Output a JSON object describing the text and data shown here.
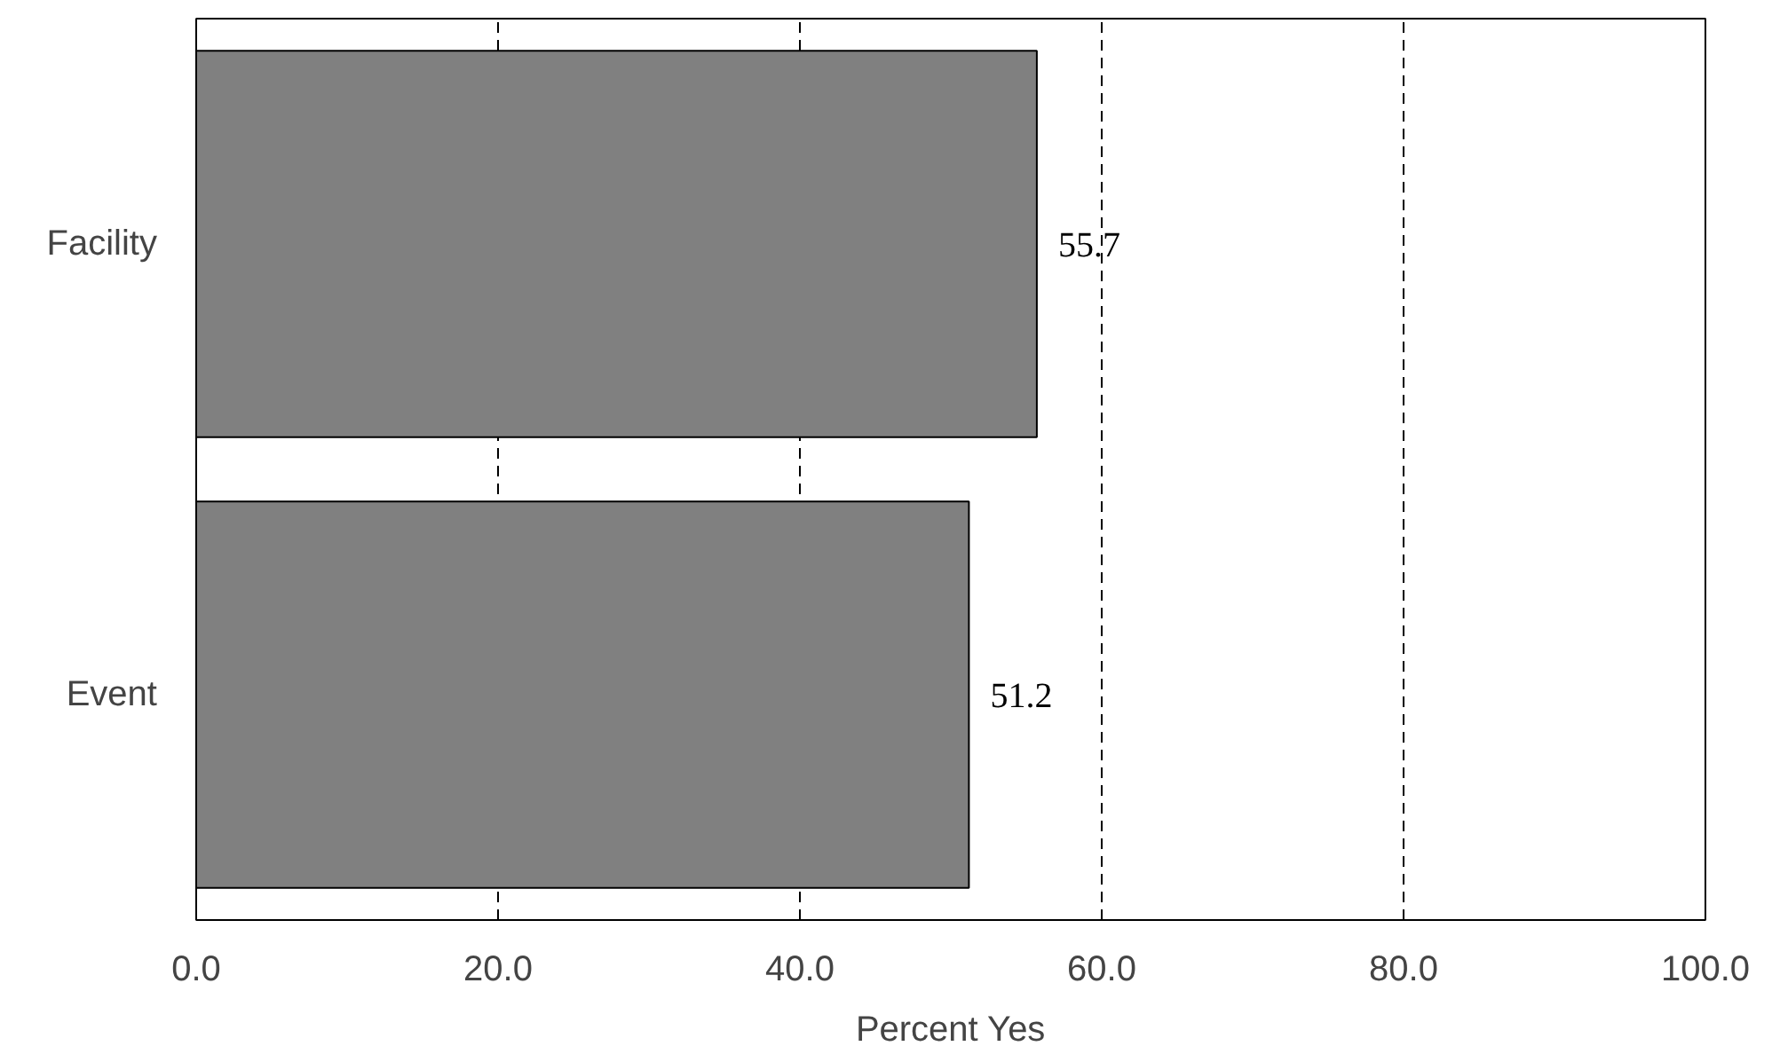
{
  "chart_data": {
    "type": "bar",
    "orientation": "horizontal",
    "xlabel": "Percent Yes",
    "categories": [
      "Facility",
      "Event"
    ],
    "values": [
      55.7,
      51.2
    ],
    "color": "#808080",
    "xlim": [
      0,
      100
    ],
    "xticks": [
      {
        "value": 0,
        "label": "0.0"
      },
      {
        "value": 20,
        "label": "20.0"
      },
      {
        "value": 40,
        "label": "40.0"
      },
      {
        "value": 60,
        "label": "60.0"
      },
      {
        "value": 80,
        "label": "80.0"
      },
      {
        "value": 100,
        "label": "100.0"
      }
    ],
    "grid": "x",
    "data_labels": true
  }
}
